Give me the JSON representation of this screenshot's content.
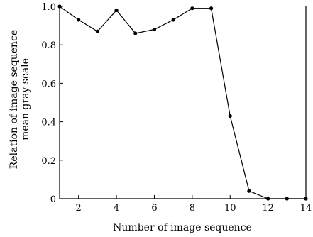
{
  "chart_data": {
    "type": "line",
    "title": "",
    "xlabel": "Number of image sequence",
    "ylabel_lines": [
      "Relation of image sequence",
      "mean gray scale"
    ],
    "xlim": [
      1,
      14
    ],
    "ylim": [
      0,
      1
    ],
    "x_ticks": [
      2,
      4,
      6,
      8,
      10,
      12,
      14
    ],
    "x_tick_labels": [
      "2",
      "4",
      "6",
      "8",
      "10",
      "12",
      "14"
    ],
    "y_ticks": [
      0,
      0.2,
      0.4,
      0.6,
      0.8,
      1.0
    ],
    "y_tick_labels": [
      "0",
      "0.2",
      "0.4",
      "0.6",
      "0.8",
      "1.0"
    ],
    "grid": false,
    "series": [
      {
        "x": [
          1,
          2,
          3,
          4,
          5,
          6,
          7,
          8,
          9,
          10,
          11,
          12,
          13,
          14
        ],
        "values": [
          1.0,
          0.93,
          0.87,
          0.98,
          0.86,
          0.88,
          0.93,
          0.99,
          0.99,
          0.43,
          0.04,
          0.0,
          0.0,
          0.0
        ],
        "color": "#000000",
        "marker": "dot"
      }
    ]
  }
}
